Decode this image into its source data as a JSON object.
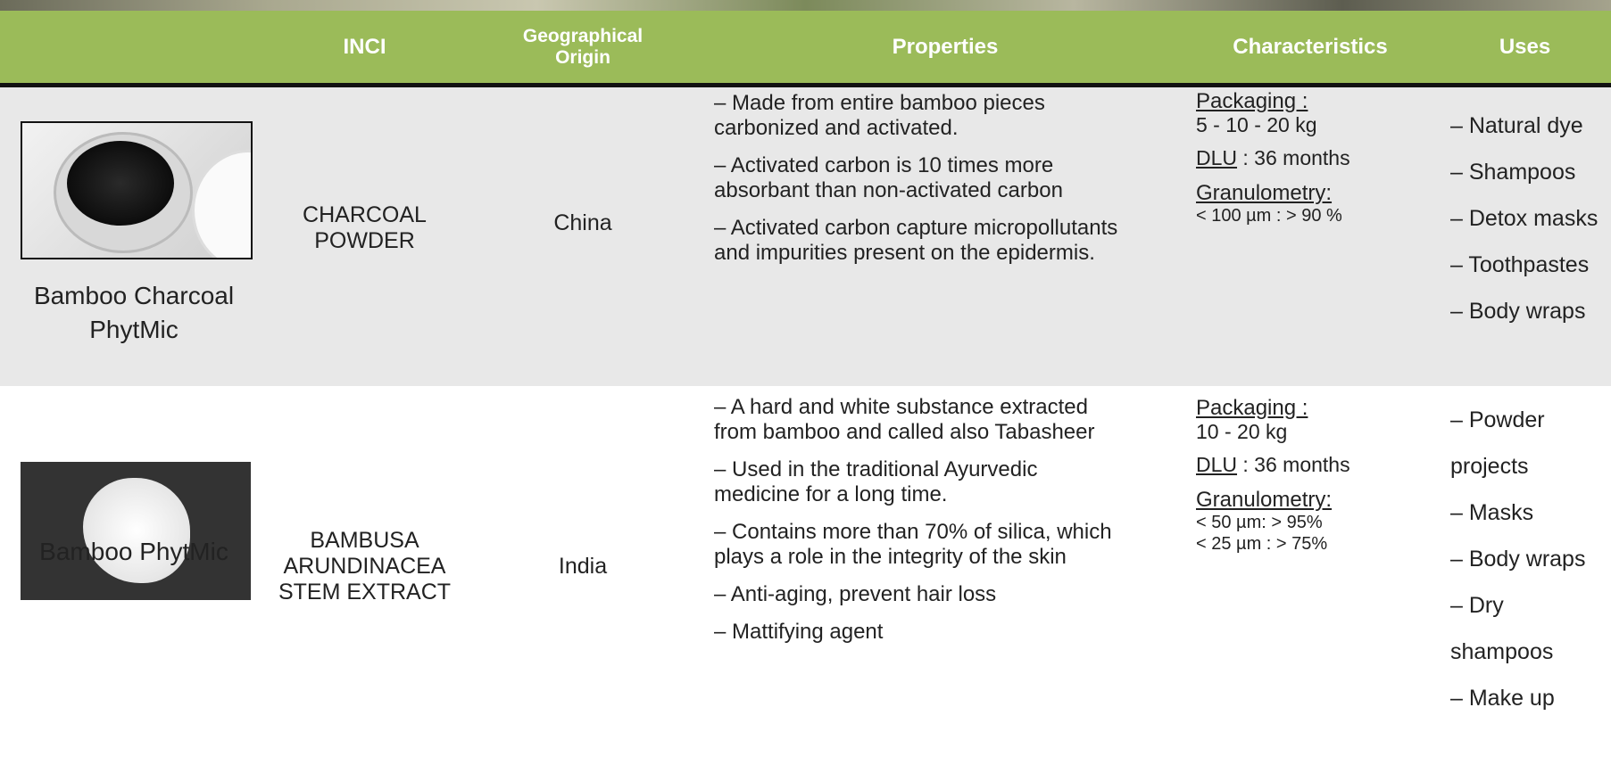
{
  "header": {
    "columns": [
      "INCI",
      "Geographical Origin",
      "Properties",
      "Characteristics",
      "Uses"
    ]
  },
  "rows": [
    {
      "name": "Bamboo Charcoal PhytMic",
      "inci": "CHARCOAL POWDER",
      "origin": "China",
      "properties": [
        "– Made from entire bamboo pieces carbonized and activated.",
        "– Activated carbon is 10 times more absorbant than non-activated carbon",
        "– Activated carbon capture micropollutants and impurities present on the epidermis."
      ],
      "characteristics": {
        "packaging_label": "Packaging :",
        "packaging": "5 - 10 - 20 kg",
        "dlu_label": "DLU",
        "dlu": ": 36 months",
        "granulometry_label": "Granulometry:",
        "granulometry": [
          "< 100 µm : > 90 %"
        ]
      },
      "uses": [
        "– Natural dye",
        "– Shampoos",
        "– Detox masks",
        "– Toothpastes",
        "– Body wraps"
      ]
    },
    {
      "name": "Bamboo PhytMic",
      "inci": "BAMBUSA ARUNDINACEA STEM EXTRACT",
      "origin": "India",
      "properties": [
        "– A hard and white substance extracted from bamboo and called also Tabasheer",
        "– Used in the traditional Ayurvedic medicine for a long time.",
        "– Contains more than 70% of silica, which plays a role in the integrity of the skin",
        "– Anti-aging, prevent hair loss",
        "– Mattifying agent"
      ],
      "characteristics": {
        "packaging_label": "Packaging :",
        "packaging": "10 - 20 kg",
        "dlu_label": "DLU",
        "dlu": ": 36 months",
        "granulometry_label": "Granulometry:",
        "granulometry": [
          "< 50 µm: > 95%",
          "< 25 µm : > 75%"
        ]
      },
      "uses": [
        "– Powder projects",
        "– Masks",
        "– Body wraps",
        "– Dry shampoos",
        "– Make up"
      ]
    }
  ]
}
